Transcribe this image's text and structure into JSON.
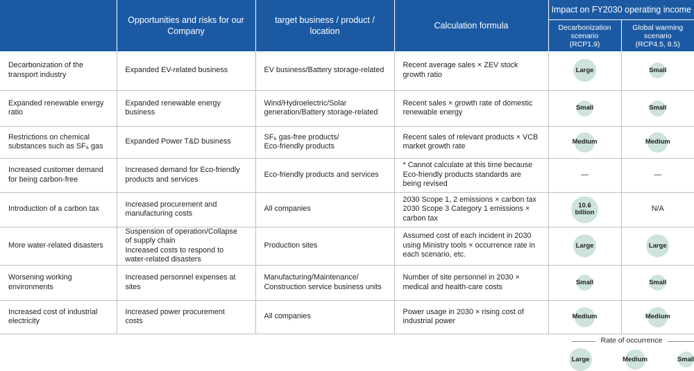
{
  "header": {
    "columns": [
      "",
      "Opportunities and risks for our\nCompany",
      "target business / product /\nlocation",
      "Calculation formula"
    ],
    "impact_title": "Impact on FY2030 operating income",
    "impact_columns": [
      "Decarbonization\nscenario\n(RCP1.9)",
      "Global warming\nscenario\n(RCP4.5, 8.5)"
    ]
  },
  "table": {
    "rows": [
      [
        "Decarbonization of the\ntransport industry",
        "Expanded EV-related business",
        "EV business/Battery storage-related",
        "Recent average sales × ZEV stock\ngrowth ratio",
        "Large",
        "Small"
      ],
      [
        "Expanded renewable energy\nratio",
        "Expanded renewable energy\nbusiness",
        "Wind/Hydroelectric/Solar\ngeneration/Battery storage-related",
        "Recent sales × growth rate of domestic\nrenewable energy",
        "Small",
        "Small"
      ],
      [
        "Restrictions on chemical\nsubstances such as SF₆ gas",
        "Expanded Power T&D business",
        "SF₆ gas-free products/\nEco-friendly products",
        "Recent sales of relevant products × VCB\nmarket growth rate",
        "Medium",
        "Medium"
      ],
      [
        "Increased customer demand\nfor being carbon-free",
        "Increased demand for Eco-friendly\nproducts and services",
        "Eco-friendly products and services",
        "* Cannot calculate at this time because\n   Eco-friendly products standards are\n   being revised",
        "—",
        "—"
      ],
      [
        "Introduction of a carbon tax",
        "Increased procurement and\nmanufacturing costs",
        "All companies",
        "2030 Scope 1, 2 emissions × carbon tax\n2030 Scope 3 Category 1 emissions ×\ncarbon tax",
        "10.6\nbillion",
        "N/A"
      ],
      [
        "More water-related disasters",
        "Suspension of operation/Collapse\nof supply chain\nIncreased costs to respond to\nwater-related disasters",
        "Production sites",
        "Assumed cost of each incident in 2030\nusing Ministry tools × occurrence rate in\neach scenario, etc.",
        "Large",
        "Large"
      ],
      [
        "Worsening working\nenvironments",
        "Increased personnel expenses at\nsites",
        "Manufacturing/Maintenance/\nConstruction service business units",
        "Number of site personnel in 2030 ×\nmedical and health-care costs",
        "Small",
        "Small"
      ],
      [
        "Increased cost of industrial\nelectricity",
        "Increased power procurement\ncosts",
        "All companies",
        "Power usage in 2030 × rising cost of\nindustrial power",
        "Medium",
        "Medium"
      ]
    ]
  },
  "legend": {
    "title": "Rate of occurrence",
    "items": [
      "Large",
      "Medium",
      "Small"
    ]
  }
}
